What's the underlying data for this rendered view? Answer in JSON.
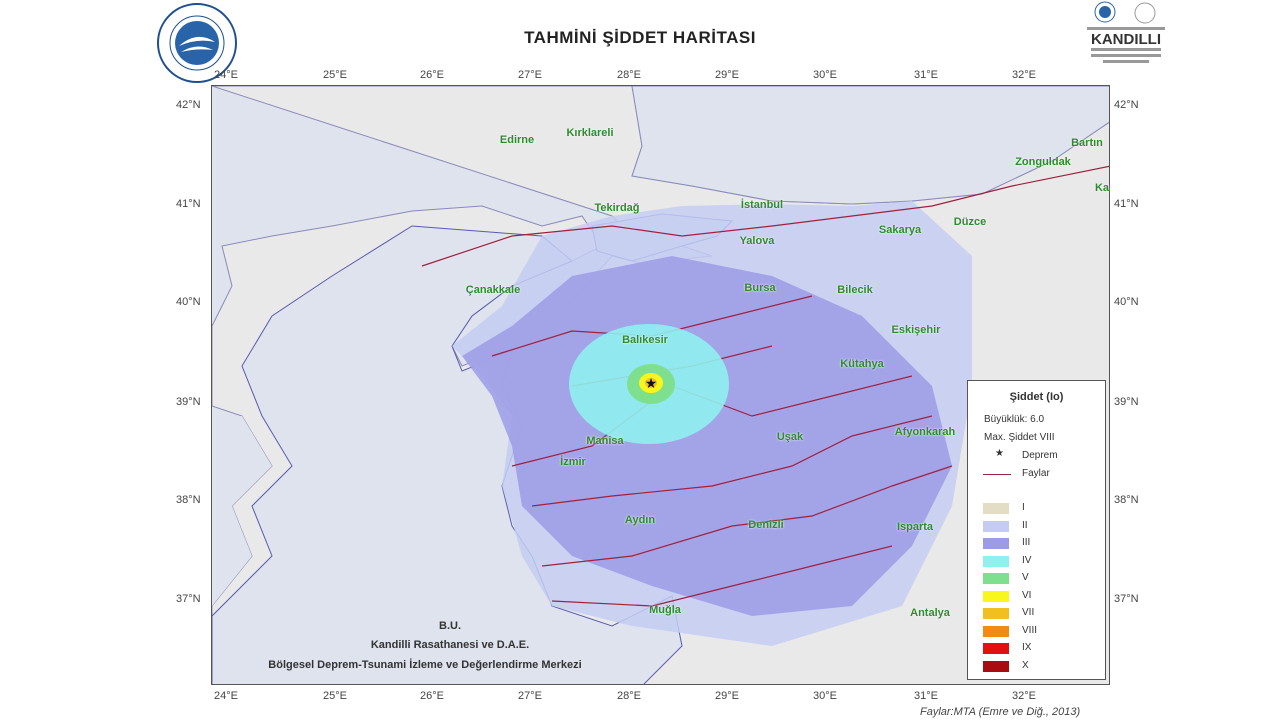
{
  "title": "TAHMİNİ ŞİDDET HARİTASI",
  "logos": {
    "left": "Boğaziçi Üniversitesi 1863",
    "right": "Boğaziçi Üniversitesi Kandilli Rasathanesi ve Deprem Araştırma Enstitüsü 1868"
  },
  "axes": {
    "longitude_labels": [
      "24°E",
      "25°E",
      "26°E",
      "27°E",
      "28°E",
      "29°E",
      "30°E",
      "31°E",
      "32°E"
    ],
    "latitude_labels": [
      "42°N",
      "41°N",
      "40°N",
      "39°N",
      "38°N",
      "37°N"
    ]
  },
  "cities": [
    "Edirne",
    "Kırklareli",
    "Tekirdağ",
    "İstanbul",
    "Yalova",
    "Sakarya",
    "Düzce",
    "Zonguldak",
    "Bartın",
    "Ka",
    "Çanakkale",
    "Bursa",
    "Bilecik",
    "Eskişehir",
    "Balıkesir",
    "Kütahya",
    "Afyonkarah",
    "Uşak",
    "Manisa",
    "İzmir",
    "Aydın",
    "Denizli",
    "Isparta",
    "Muğla",
    "Antalya"
  ],
  "legend": {
    "title": "Şiddet (Io)",
    "magnitude": "Büyüklük: 6.0",
    "max_intensity": "Max. Şiddet VIII",
    "epicenter": "Deprem",
    "faults": "Faylar",
    "classes": [
      {
        "label": "I",
        "color": "#e3ddc6"
      },
      {
        "label": "II",
        "color": "#c4ccf2"
      },
      {
        "label": "III",
        "color": "#9c9ce6"
      },
      {
        "label": "IV",
        "color": "#8ff0ee"
      },
      {
        "label": "V",
        "color": "#7ee08e"
      },
      {
        "label": "VI",
        "color": "#f7f71c"
      },
      {
        "label": "VII",
        "color": "#f2c01e"
      },
      {
        "label": "VIII",
        "color": "#f08c14"
      },
      {
        "label": "IX",
        "color": "#e41010"
      },
      {
        "label": "X",
        "color": "#a80c10"
      }
    ]
  },
  "credits": [
    "B.U.",
    "Kandilli Rasathanesi ve D.A.E.",
    "Bölgesel Deprem-Tsunami İzleme ve Değerlendirme Merkezi"
  ],
  "source": "Faylar:MTA (Emre ve Diğ., 2013)"
}
